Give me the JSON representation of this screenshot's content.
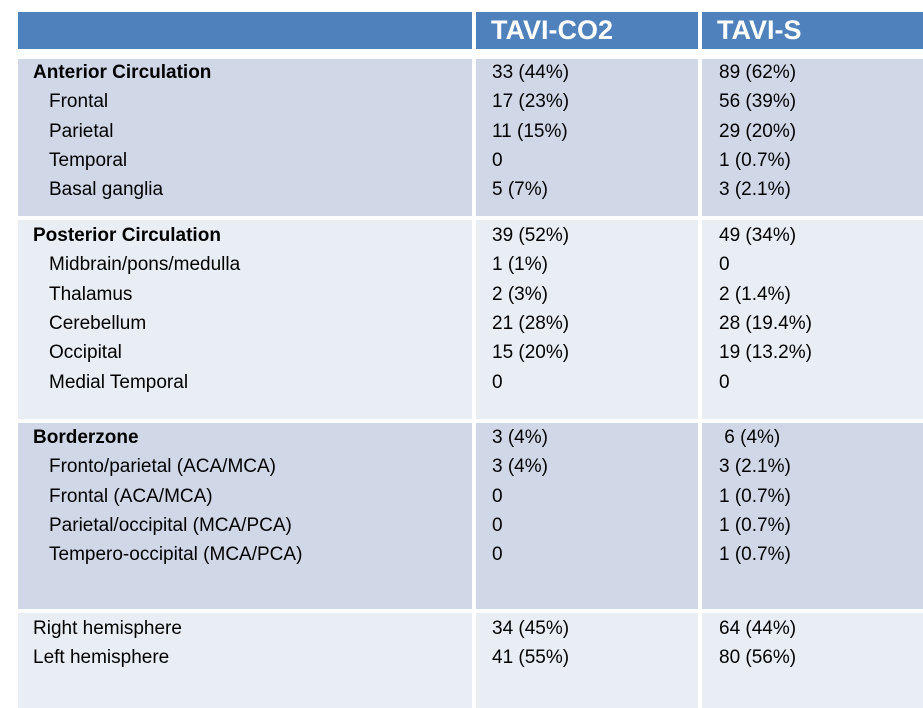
{
  "header": {
    "col1": "",
    "col2": "TAVI-CO2",
    "col3": "TAVI-S"
  },
  "sections": [
    {
      "name": "Anterior Circulation",
      "co2": "33 (44%)",
      "s": "89 (62%)",
      "rows": [
        {
          "label": "Frontal",
          "co2": "17 (23%)",
          "s": "56 (39%)"
        },
        {
          "label": "Parietal",
          "co2": "11 (15%)",
          "s": "29 (20%)"
        },
        {
          "label": "Temporal",
          "co2": "0",
          "s": "1 (0.7%)"
        },
        {
          "label": "Basal ganglia",
          "co2": "5 (7%)",
          "s": "3 (2.1%)"
        }
      ]
    },
    {
      "name": "Posterior Circulation",
      "co2": "39 (52%)",
      "s": "49 (34%)",
      "rows": [
        {
          "label": "Midbrain/pons/medulla",
          "co2": "1 (1%)",
          "s": "0"
        },
        {
          "label": "Thalamus",
          "co2": "2 (3%)",
          "s": "2 (1.4%)"
        },
        {
          "label": "Cerebellum",
          "co2": "21 (28%)",
          "s": "28 (19.4%)"
        },
        {
          "label": "Occipital",
          "co2": "15 (20%)",
          "s": "19 (13.2%)"
        },
        {
          "label": "Medial Temporal",
          "co2": "0",
          "s": "0"
        }
      ]
    },
    {
      "name": "Borderzone",
      "co2": "3 (4%)",
      "s": " 6 (4%)",
      "rows": [
        {
          "label": "Fronto/parietal  (ACA/MCA)",
          "co2": "3 (4%)",
          "s": "3 (2.1%)"
        },
        {
          "label": "Frontal (ACA/MCA)",
          "co2": "0",
          "s": "1 (0.7%)"
        },
        {
          "label": "Parietal/occipital (MCA/PCA)",
          "co2": "0",
          "s": "1 (0.7%)"
        },
        {
          "label": "Tempero-occipital  (MCA/PCA)",
          "co2": "0",
          "s": "1 (0.7%)"
        }
      ]
    },
    {
      "name": "",
      "co2": "",
      "s": "",
      "rows": [
        {
          "label": "Right hemisphere",
          "co2": "34 (45%)",
          "s": "64 (44%)"
        },
        {
          "label": "Left hemisphere",
          "co2": "41 (55%)",
          "s": "80 (56%)"
        }
      ]
    }
  ]
}
